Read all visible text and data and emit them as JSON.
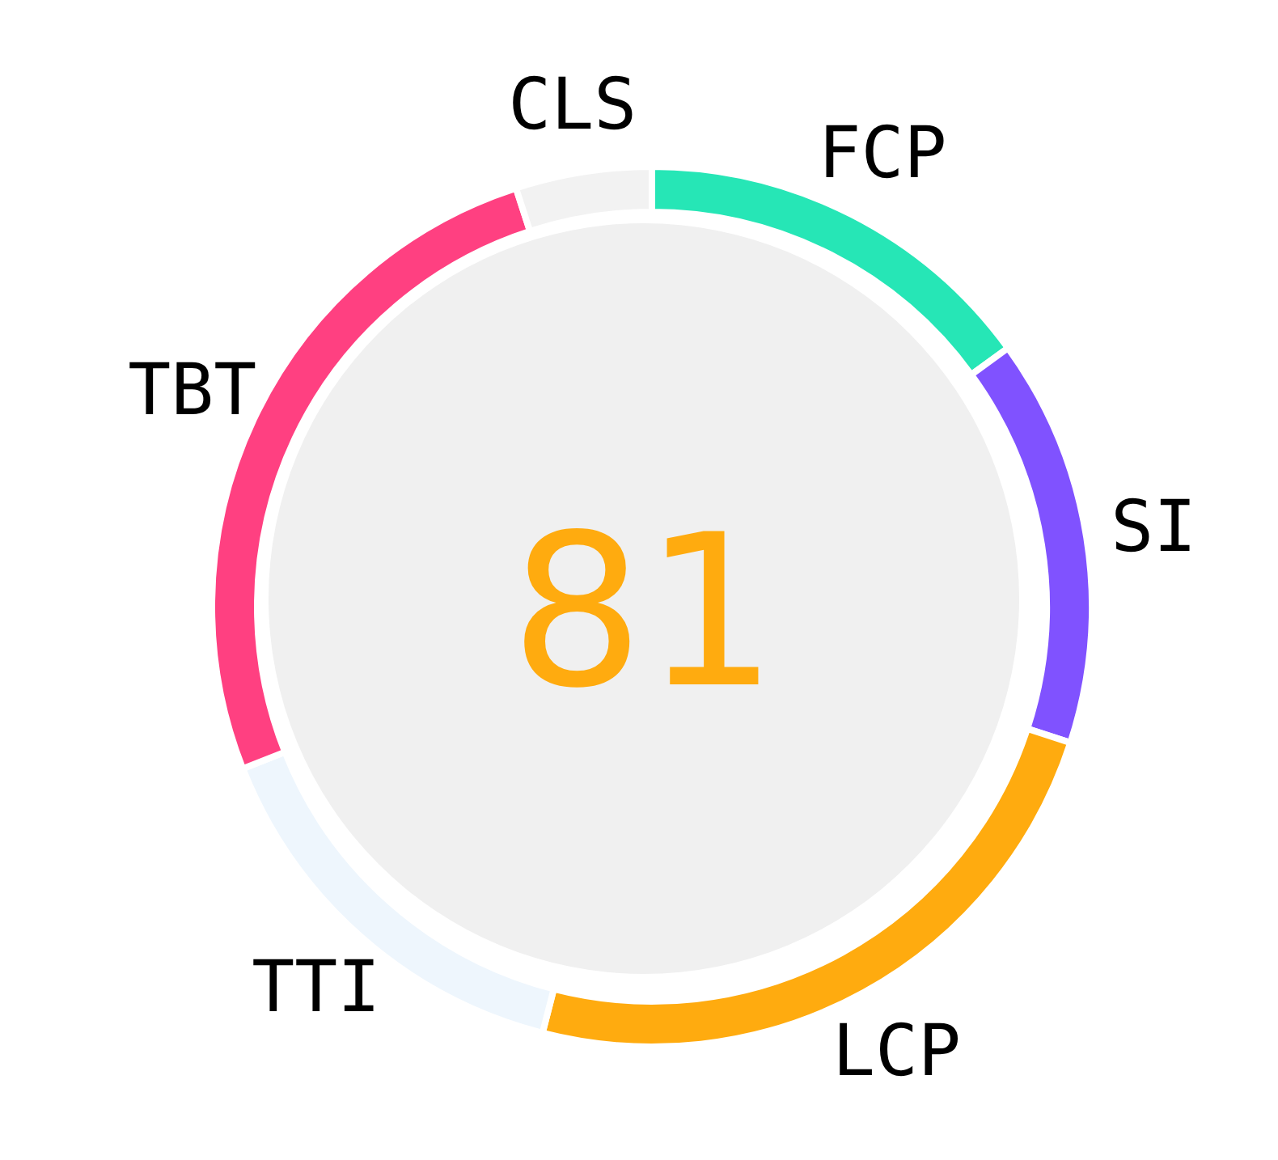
{
  "chart_data": {
    "type": "donut",
    "categories": [
      "FCP",
      "SI",
      "LCP",
      "TTI",
      "TBT",
      "CLS"
    ],
    "values": [
      15,
      15,
      24,
      15,
      26,
      5
    ],
    "colors": [
      "#26e6b6",
      "#8052ff",
      "#ffab0f",
      "#eef6fd",
      "#ff4081",
      "#f2f2f2"
    ],
    "annotations": [
      "81"
    ],
    "legend": false
  }
}
